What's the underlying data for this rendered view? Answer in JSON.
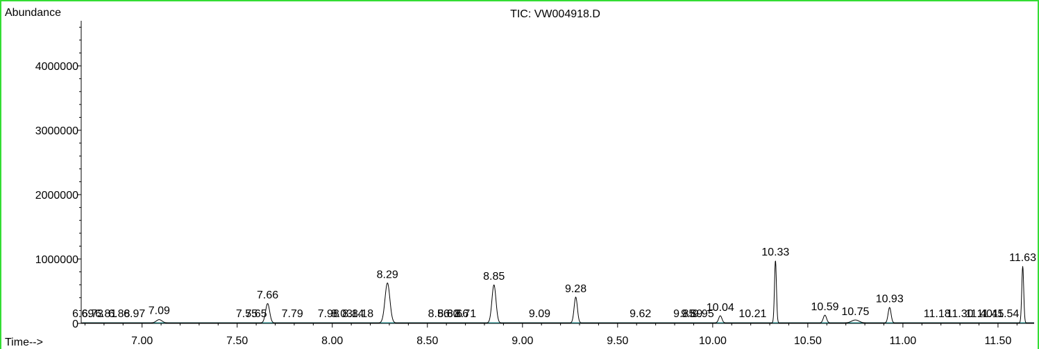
{
  "chart_data": {
    "type": "line",
    "title": "TIC: VW004918.D",
    "ylabel": "Abundance",
    "xlabel": "Time-->",
    "xlim": [
      6.68,
      11.69
    ],
    "ylim": [
      0,
      4700000
    ],
    "x_ticks": [
      7.0,
      7.5,
      8.0,
      8.5,
      9.0,
      9.5,
      10.0,
      10.5,
      11.0,
      11.5
    ],
    "x_tick_labels": [
      "7.00",
      "7.50",
      "8.00",
      "8.50",
      "9.00",
      "9.50",
      "10.00",
      "10.50",
      "11.00",
      "11.50"
    ],
    "y_ticks": [
      0,
      1000000,
      2000000,
      3000000,
      4000000
    ],
    "y_tick_labels": [
      "0",
      "1000000",
      "2000000",
      "3000000",
      "4000000"
    ],
    "grid": false,
    "series": [
      {
        "peaks": [
          {
            "rt": 7.09,
            "height": 50000,
            "width": 0.035
          },
          {
            "rt": 7.66,
            "height": 300000,
            "width": 0.025
          },
          {
            "rt": 8.29,
            "height": 620000,
            "width": 0.03
          },
          {
            "rt": 8.85,
            "height": 590000,
            "width": 0.025
          },
          {
            "rt": 9.28,
            "height": 400000,
            "width": 0.02
          },
          {
            "rt": 10.04,
            "height": 110000,
            "width": 0.02
          },
          {
            "rt": 10.33,
            "height": 970000,
            "width": 0.012
          },
          {
            "rt": 10.59,
            "height": 120000,
            "width": 0.02
          },
          {
            "rt": 10.75,
            "height": 45000,
            "width": 0.045
          },
          {
            "rt": 10.93,
            "height": 240000,
            "width": 0.018
          },
          {
            "rt": 11.63,
            "height": 880000,
            "width": 0.012
          }
        ]
      }
    ],
    "peak_labels": [
      {
        "text": "7.09",
        "rt": 7.09,
        "abundance": 60000
      },
      {
        "text": "7.66",
        "rt": 7.66,
        "abundance": 300000
      },
      {
        "text": "8.29",
        "rt": 8.29,
        "abundance": 620000
      },
      {
        "text": "8.85",
        "rt": 8.85,
        "abundance": 590000
      },
      {
        "text": "9.28",
        "rt": 9.28,
        "abundance": 400000
      },
      {
        "text": "10.04",
        "rt": 10.04,
        "abundance": 110000
      },
      {
        "text": "10.33",
        "rt": 10.33,
        "abundance": 970000
      },
      {
        "text": "10.59",
        "rt": 10.59,
        "abundance": 120000
      },
      {
        "text": "10.75",
        "rt": 10.75,
        "abundance": 45000
      },
      {
        "text": "10.93",
        "rt": 10.93,
        "abundance": 240000
      },
      {
        "text": "11.63",
        "rt": 11.63,
        "abundance": 880000
      },
      {
        "text": "7.55",
        "rt": 7.55,
        "abundance": 10000
      },
      {
        "text": "7.65",
        "rt": 7.6,
        "abundance": 10000
      },
      {
        "text": "7.79",
        "rt": 7.79,
        "abundance": 10000
      },
      {
        "text": "7.98",
        "rt": 7.98,
        "abundance": 10000
      },
      {
        "text": "8.03",
        "rt": 8.05,
        "abundance": 10000
      },
      {
        "text": "8.14",
        "rt": 8.11,
        "abundance": 10000
      },
      {
        "text": "8.18",
        "rt": 8.16,
        "abundance": 10000
      },
      {
        "text": "8.56",
        "rt": 8.56,
        "abundance": 10000
      },
      {
        "text": "8.60",
        "rt": 8.61,
        "abundance": 10000
      },
      {
        "text": "8.66",
        "rt": 8.66,
        "abundance": 10000
      },
      {
        "text": "8.71",
        "rt": 8.7,
        "abundance": 10000
      },
      {
        "text": "9.09",
        "rt": 9.09,
        "abundance": 10000
      },
      {
        "text": "9.62",
        "rt": 9.62,
        "abundance": 10000
      },
      {
        "text": "9.85",
        "rt": 9.85,
        "abundance": 10000
      },
      {
        "text": "9.89",
        "rt": 9.89,
        "abundance": 10000
      },
      {
        "text": "9.95",
        "rt": 9.95,
        "abundance": 10000
      },
      {
        "text": "10.21",
        "rt": 10.21,
        "abundance": 10000
      },
      {
        "text": "11.18",
        "rt": 11.18,
        "abundance": 10000
      },
      {
        "text": "11.30",
        "rt": 11.3,
        "abundance": 10000
      },
      {
        "text": "11.40",
        "rt": 11.4,
        "abundance": 10000
      },
      {
        "text": "11.45",
        "rt": 11.46,
        "abundance": 10000
      },
      {
        "text": "11.54",
        "rt": 11.54,
        "abundance": 10000
      },
      {
        "text": "6.69",
        "rt": 6.69,
        "abundance": 10000
      },
      {
        "text": "6.73",
        "rt": 6.74,
        "abundance": 10000
      },
      {
        "text": "6.81",
        "rt": 6.81,
        "abundance": 10000
      },
      {
        "text": "6.88",
        "rt": 6.88,
        "abundance": 10000
      },
      {
        "text": "6.97",
        "rt": 6.96,
        "abundance": 10000
      }
    ],
    "colors": {
      "trace": "#000000",
      "baseline": "#2aa6a6",
      "frame": "#33dd33"
    }
  }
}
